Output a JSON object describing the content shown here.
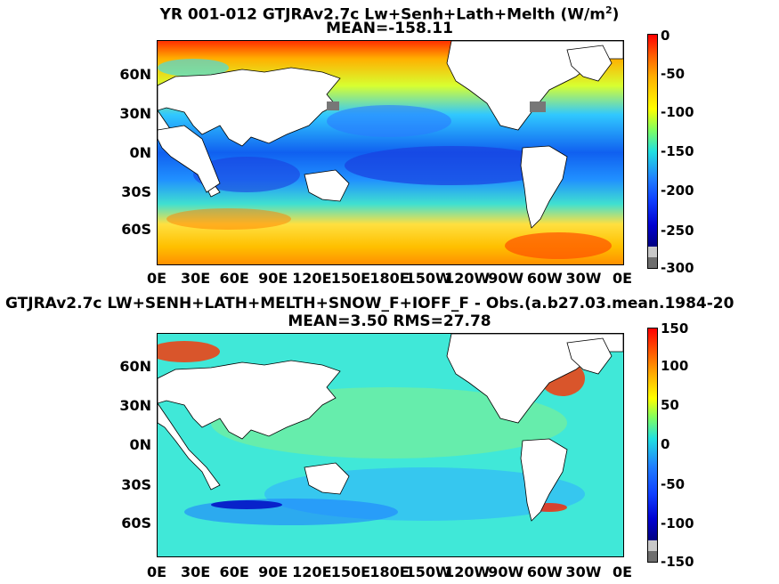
{
  "panel_top": {
    "title_prefix": "YR 001-012 GTJRAv2.7c Lw+Senh+Lath+Melth (W/m",
    "title_sup": "2",
    "title_suffix": ")",
    "subtitle": "MEAN=-158.11",
    "colorbar_ticks": [
      "0",
      "-50",
      "-100",
      "-150",
      "-200",
      "-250",
      "-300"
    ]
  },
  "panel_bottom": {
    "title": "GTJRAv2.7c LW+SENH+LATH+MELTH+SNOW_F+IOFF_F - Obs.(a.b27.03.mean.1984-20",
    "subtitle": "MEAN=3.50 RMS=27.78",
    "colorbar_ticks": [
      "150",
      "100",
      "50",
      "0",
      "-50",
      "-100",
      "-150"
    ]
  },
  "axes": {
    "lat_labels": [
      "60N",
      "30N",
      "0N",
      "30S",
      "60S"
    ],
    "lon_labels": [
      "0E",
      "30E",
      "60E",
      "90E",
      "120E",
      "150E",
      "180E",
      "150W",
      "120W",
      "90W",
      "60W",
      "30W",
      "0E"
    ]
  },
  "colors": {
    "land": "#ffffff",
    "colormap": [
      "#7f0000",
      "#ff0000",
      "#ff7f00",
      "#ffff00",
      "#7fff7f",
      "#00ffff",
      "#007fff",
      "#0000ff",
      "#00007f"
    ],
    "undef_light": "#c8c8c8",
    "undef_dark": "#6e6e6e"
  }
}
